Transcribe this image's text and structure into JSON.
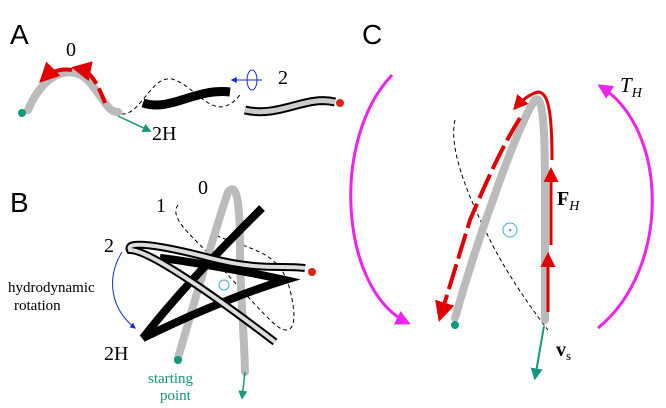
{
  "panels": [
    {
      "label": "A",
      "texts": [
        "0",
        "2H",
        "2"
      ]
    },
    {
      "label": "B",
      "texts": [
        "0",
        "1",
        "2",
        "2H"
      ],
      "notes": [
        [
          "hydrodynamic",
          "rotation"
        ],
        [
          "starting",
          "point"
        ]
      ]
    },
    {
      "label": "C",
      "symbols": [
        {
          "symbol": "T",
          "subscript": "H"
        },
        {
          "symbol": "F",
          "subscript": "H"
        },
        {
          "symbol": "v",
          "subscript": "s"
        }
      ]
    }
  ]
}
